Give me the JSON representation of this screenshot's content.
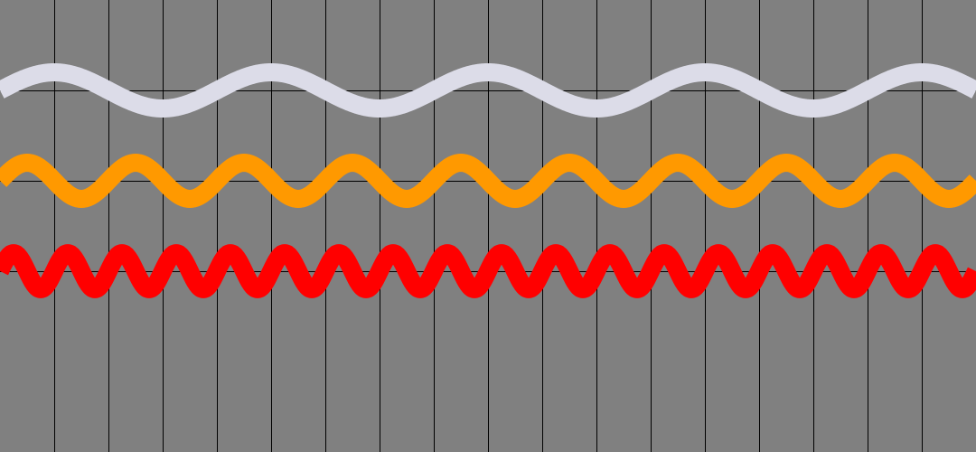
{
  "background_color": "#808080",
  "grid": {
    "visible": true,
    "color": "#000000",
    "vertical_line_count": 17,
    "horizontal_line_count": 3
  },
  "waves": [
    {
      "name": "wave-lavender",
      "color": "#DCDCE8",
      "cycles": 4.5
    },
    {
      "name": "wave-orange",
      "color": "#FF9900",
      "cycles": 9
    },
    {
      "name": "wave-red",
      "color": "#FF0000",
      "cycles": 18
    }
  ]
}
